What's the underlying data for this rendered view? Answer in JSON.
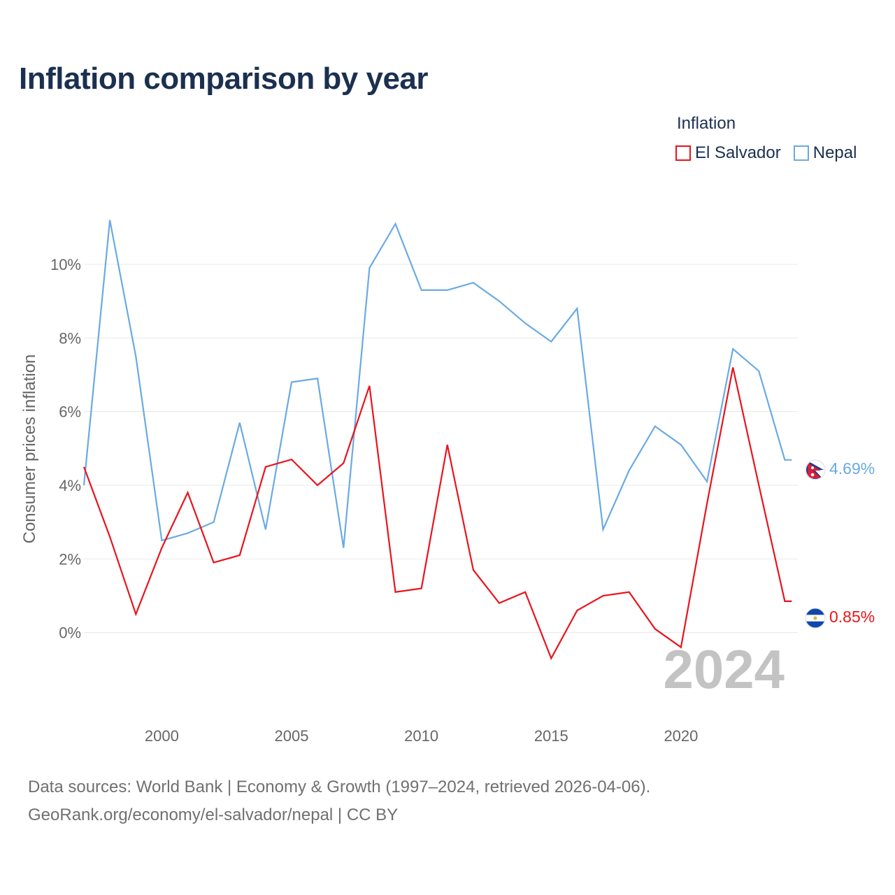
{
  "title": "Inflation comparison by year",
  "legend": {
    "title": "Inflation",
    "items": [
      {
        "label": "El Salvador",
        "color": "#e8141c"
      },
      {
        "label": "Nepal",
        "color": "#6aaae4"
      }
    ]
  },
  "source": {
    "line1": "Data sources: World Bank | Economy & Growth (1997–2024, retrieved 2026-04-06).",
    "line2": "GeoRank.org/economy/el-salvador/nepal | CC BY"
  },
  "chart_data": {
    "type": "line",
    "title": "Inflation comparison by year",
    "xlabel": "",
    "ylabel": "Consumer prices inflation",
    "x": [
      1997,
      1998,
      1999,
      2000,
      2001,
      2002,
      2003,
      2004,
      2005,
      2006,
      2007,
      2008,
      2009,
      2010,
      2011,
      2012,
      2013,
      2014,
      2015,
      2016,
      2017,
      2018,
      2019,
      2020,
      2021,
      2022,
      2023,
      2024
    ],
    "xlim": [
      1997,
      2024.5
    ],
    "ylim": [
      -2,
      11.5
    ],
    "x_ticks": [
      2000,
      2005,
      2010,
      2015,
      2020
    ],
    "x_tick_labels": [
      "2000",
      "2005",
      "2010",
      "2015",
      "2020"
    ],
    "y_ticks": [
      0,
      2,
      4,
      6,
      8,
      10
    ],
    "y_tick_labels": [
      "0%",
      "2%",
      "4%",
      "6%",
      "8%",
      "10%"
    ],
    "grid": true,
    "legend_position": "top-right",
    "watermark": "2024",
    "series": [
      {
        "name": "El Salvador",
        "color": "#e8141c",
        "values": [
          4.5,
          2.6,
          0.5,
          2.3,
          3.8,
          1.9,
          2.1,
          4.5,
          4.7,
          4.0,
          4.6,
          6.7,
          1.1,
          1.2,
          5.1,
          1.7,
          0.8,
          1.1,
          -0.7,
          0.6,
          1.0,
          1.1,
          0.1,
          -0.4,
          3.5,
          7.2,
          4.0,
          0.85
        ],
        "end_label": "0.85%"
      },
      {
        "name": "Nepal",
        "color": "#6aaae4",
        "values": [
          4.0,
          11.2,
          7.5,
          2.5,
          2.7,
          3.0,
          5.7,
          2.8,
          6.8,
          6.9,
          2.3,
          9.9,
          11.1,
          9.3,
          9.3,
          9.5,
          9.0,
          8.4,
          7.9,
          8.8,
          2.8,
          4.4,
          5.6,
          5.1,
          4.1,
          7.7,
          7.1,
          4.69
        ],
        "end_label": "4.69%"
      }
    ]
  }
}
